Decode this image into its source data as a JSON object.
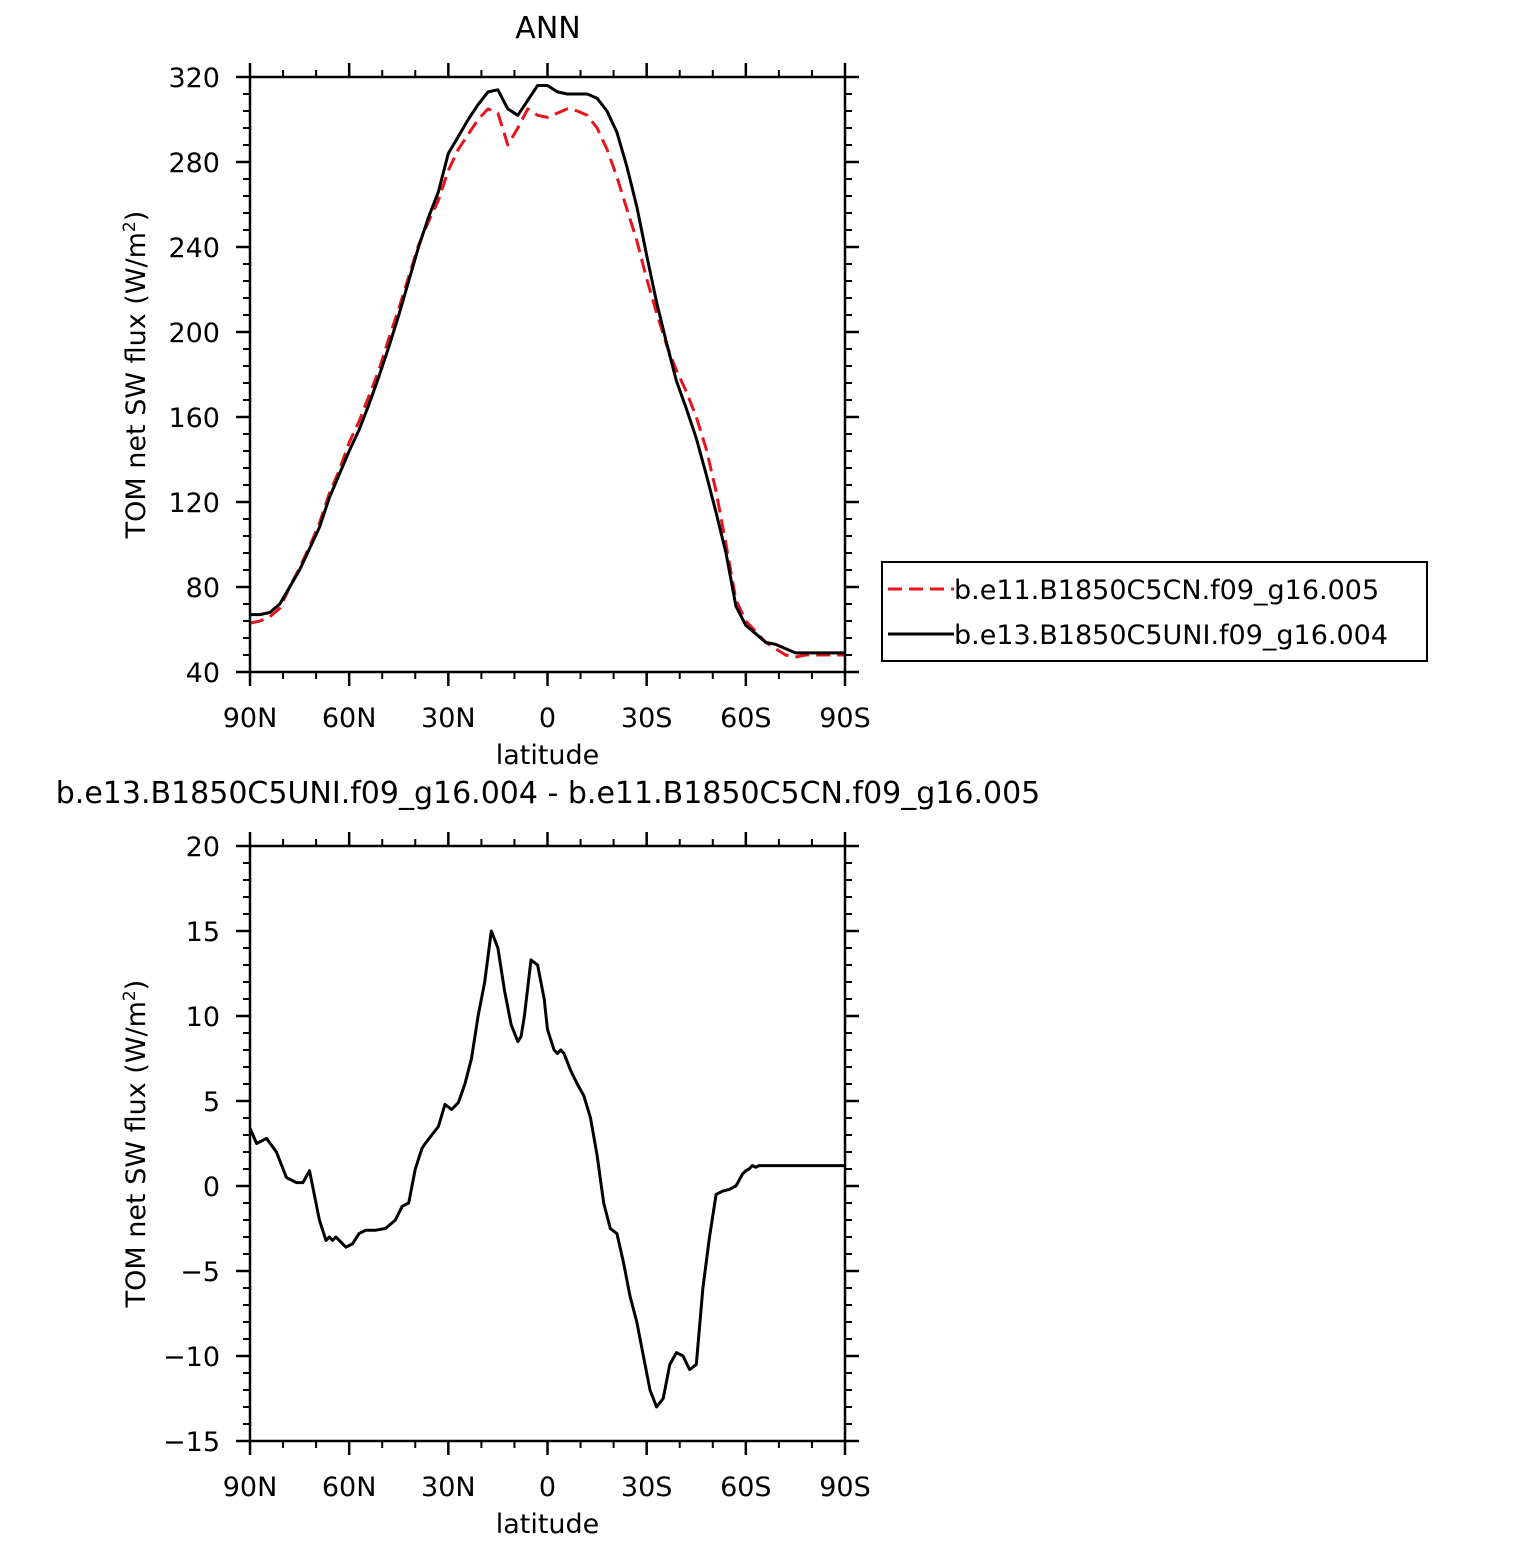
{
  "chart_data": [
    {
      "type": "line",
      "title": "ANN",
      "xlabel": "latitude",
      "ylabel": "TOM net SW flux (W/m",
      "ylabel_sup": "2",
      "ylabel_close": ")",
      "xlim": [
        90,
        -90
      ],
      "ylim": [
        40,
        320
      ],
      "x_ticks": [
        90,
        60,
        30,
        0,
        -30,
        -60,
        -90
      ],
      "x_tick_labels": [
        "90N",
        "60N",
        "30N",
        "0",
        "30S",
        "60S",
        "90S"
      ],
      "y_ticks": [
        40,
        80,
        120,
        160,
        200,
        240,
        280,
        320
      ],
      "y_tick_labels": [
        "40",
        "80",
        "120",
        "160",
        "200",
        "240",
        "280",
        "320"
      ],
      "legend": "right",
      "series": [
        {
          "name": "b.e11.B1850C5CN.f09_g16.005",
          "color": "#e8141c",
          "dash": "dashed",
          "x": [
            90,
            87,
            84,
            81,
            78,
            75,
            72,
            69,
            66,
            63,
            60,
            57,
            54,
            51,
            48,
            45,
            42,
            39,
            36,
            33,
            30,
            27,
            24,
            21,
            18,
            15,
            12,
            9,
            6,
            3,
            0,
            -3,
            -6,
            -9,
            -12,
            -15,
            -18,
            -21,
            -24,
            -27,
            -30,
            -33,
            -36,
            -39,
            -42,
            -45,
            -48,
            -51,
            -54,
            -57,
            -60,
            -63,
            -66,
            -69,
            -72,
            -75,
            -78,
            -81,
            -84,
            -87,
            -90
          ],
          "y": [
            63,
            64,
            66,
            70,
            80,
            89,
            99,
            110,
            124,
            135,
            148,
            158,
            170,
            182,
            197,
            211,
            226,
            241,
            252,
            262,
            276,
            286,
            293,
            300,
            305,
            303,
            288,
            296,
            305,
            302,
            301,
            303,
            305,
            304,
            302,
            296,
            286,
            273,
            258,
            243,
            225,
            209,
            194,
            182,
            172,
            160,
            145,
            125,
            100,
            74,
            64,
            59,
            54,
            51,
            48,
            47,
            48,
            48,
            48,
            48,
            48
          ]
        },
        {
          "name": "b.e13.B1850C5UNI.f09_g16.004",
          "color": "#000000",
          "dash": "solid",
          "x": [
            90,
            87,
            84,
            81,
            78,
            75,
            72,
            69,
            66,
            63,
            60,
            57,
            54,
            51,
            48,
            45,
            42,
            39,
            36,
            33,
            30,
            27,
            24,
            21,
            18,
            15,
            12,
            9,
            6,
            3,
            0,
            -3,
            -6,
            -9,
            -12,
            -15,
            -18,
            -21,
            -24,
            -27,
            -30,
            -33,
            -36,
            -39,
            -42,
            -45,
            -48,
            -51,
            -54,
            -57,
            -60,
            -63,
            -66,
            -69,
            -72,
            -75,
            -78,
            -81,
            -84,
            -87,
            -90
          ],
          "y": [
            67,
            67,
            68,
            72,
            80,
            88,
            98,
            108,
            122,
            133,
            144,
            154,
            166,
            179,
            193,
            208,
            224,
            240,
            254,
            266,
            284,
            292,
            300,
            307,
            313,
            314,
            305,
            302,
            309,
            316,
            316,
            313,
            312,
            312,
            312,
            310,
            304,
            294,
            278,
            259,
            236,
            214,
            195,
            177,
            164,
            150,
            133,
            115,
            96,
            71,
            62,
            58,
            54,
            53,
            51,
            49,
            49,
            49,
            49,
            49,
            49
          ]
        }
      ]
    },
    {
      "type": "line",
      "title": "b.e13.B1850C5UNI.f09_g16.004 - b.e11.B1850C5CN.f09_g16.005",
      "xlabel": "latitude",
      "ylabel": "TOM net SW flux (W/m",
      "ylabel_sup": "2",
      "ylabel_close": ")",
      "xlim": [
        90,
        -90
      ],
      "ylim": [
        -15,
        20
      ],
      "x_ticks": [
        90,
        60,
        30,
        0,
        -30,
        -60,
        -90
      ],
      "x_tick_labels": [
        "90N",
        "60N",
        "30N",
        "0",
        "30S",
        "60S",
        "90S"
      ],
      "y_ticks": [
        -15,
        -10,
        -5,
        0,
        5,
        10,
        15,
        20
      ],
      "y_tick_labels": [
        "−15",
        "−10",
        "−5",
        "0",
        "5",
        "10",
        "15",
        "20"
      ],
      "series": [
        {
          "color": "#000000",
          "dash": "solid",
          "x": [
            90,
            88,
            85,
            82,
            79,
            76,
            74,
            72,
            69,
            67,
            66,
            65,
            64,
            63,
            61,
            59,
            57,
            55,
            52,
            49,
            46,
            44,
            42,
            40,
            38,
            37,
            35,
            33,
            31,
            29,
            27,
            25,
            23,
            21,
            19,
            17,
            15,
            13,
            11,
            9,
            8,
            7,
            5,
            3,
            1,
            0,
            -2,
            -3,
            -4,
            -5,
            -7,
            -9,
            -11,
            -13,
            -15,
            -17,
            -19,
            -21,
            -23,
            -25,
            -27,
            -29,
            -31,
            -33,
            -35,
            -37,
            -39,
            -41,
            -43,
            -45,
            -47,
            -49,
            -51,
            -53,
            -55,
            -57,
            -59,
            -60,
            -61,
            -62,
            -63,
            -64,
            -65,
            -66,
            -67,
            -69,
            -71,
            -73,
            -75,
            -77,
            -79,
            -81,
            -83,
            -85,
            -87,
            -90
          ],
          "y": [
            3.4,
            2.5,
            2.8,
            2.0,
            0.5,
            0.2,
            0.2,
            0.9,
            -2.0,
            -3.2,
            -3.0,
            -3.2,
            -3.0,
            -3.2,
            -3.6,
            -3.4,
            -2.8,
            -2.6,
            -2.6,
            -2.5,
            -2.0,
            -1.2,
            -1.0,
            1.0,
            2.2,
            2.5,
            3.0,
            3.5,
            4.8,
            4.5,
            4.9,
            6.0,
            7.5,
            10.0,
            12.0,
            15.0,
            14.0,
            11.5,
            9.5,
            8.5,
            8.8,
            10.0,
            13.3,
            13.0,
            11.0,
            9.2,
            8.0,
            7.8,
            8.0,
            7.8,
            6.8,
            6.0,
            5.3,
            4.0,
            1.8,
            -1.0,
            -2.5,
            -2.8,
            -4.5,
            -6.5,
            -8.0,
            -10.0,
            -12.0,
            -13.0,
            -12.5,
            -10.5,
            -9.8,
            -10.0,
            -10.8,
            -10.5,
            -6.0,
            -3.0,
            -0.5,
            -0.3,
            -0.2,
            0.0,
            0.7,
            0.9,
            1.0,
            1.2,
            1.1,
            1.2,
            1.2,
            1.2,
            1.2,
            1.2,
            1.2,
            1.2,
            1.2,
            1.2,
            1.2,
            1.2,
            1.2,
            1.2,
            1.2,
            1.2
          ]
        }
      ]
    }
  ]
}
